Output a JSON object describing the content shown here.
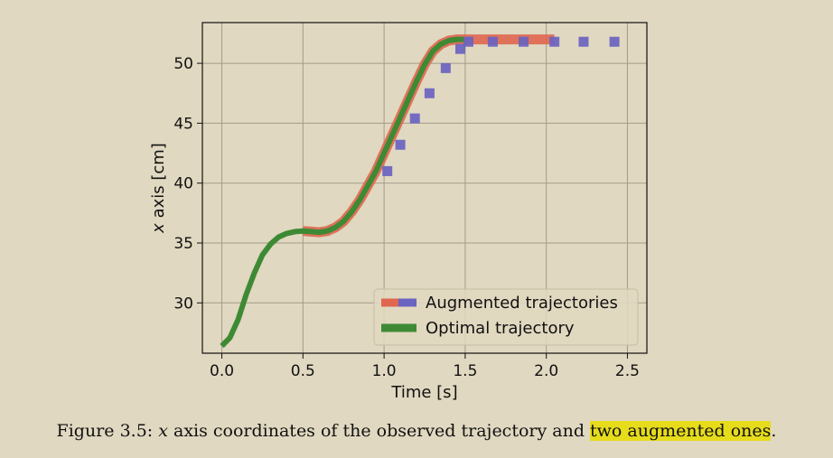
{
  "colors": {
    "background": "#e0d8c0",
    "optimal": "#3e8a34",
    "augmented_red": "#e0664f",
    "augmented_blue": "#6a63c0",
    "highlight": "#e6dc1c"
  },
  "chart_data": {
    "type": "line",
    "xlabel": "Time [s]",
    "ylabel_var": "x",
    "ylabel_rest": " axis [cm]",
    "xlim": [
      -0.12,
      2.62
    ],
    "ylim": [
      25.8,
      53.4
    ],
    "xticks": [
      0.0,
      0.5,
      1.0,
      1.5,
      2.0,
      2.5
    ],
    "xtick_labels": [
      "0.0",
      "0.5",
      "1.0",
      "1.5",
      "2.0",
      "2.5"
    ],
    "yticks": [
      30,
      35,
      40,
      45,
      50
    ],
    "ytick_labels": [
      "30",
      "35",
      "40",
      "45",
      "50"
    ],
    "grid": true,
    "legend_position": "lower right",
    "series": [
      {
        "name": "Optimal trajectory",
        "style": "solid",
        "x": [
          0.0,
          0.05,
          0.1,
          0.15,
          0.2,
          0.25,
          0.3,
          0.35,
          0.4,
          0.45,
          0.5,
          0.55,
          0.6,
          0.65,
          0.7,
          0.75,
          0.8,
          0.85,
          0.9,
          0.95,
          1.0,
          1.05,
          1.1,
          1.15,
          1.2,
          1.25,
          1.3,
          1.35,
          1.4,
          1.45,
          1.5
        ],
        "y": [
          26.4,
          27.1,
          28.6,
          30.7,
          32.5,
          34.0,
          34.9,
          35.5,
          35.8,
          35.95,
          36.0,
          35.95,
          35.9,
          36.0,
          36.3,
          36.8,
          37.6,
          38.6,
          39.8,
          41.0,
          42.5,
          44.0,
          45.5,
          47.0,
          48.5,
          49.9,
          51.0,
          51.6,
          51.9,
          52.0,
          52.0
        ]
      },
      {
        "name": "Augmented trajectories",
        "style": "solid",
        "x": [
          0.5,
          0.55,
          0.6,
          0.65,
          0.7,
          0.75,
          0.8,
          0.85,
          0.9,
          0.95,
          1.0,
          1.05,
          1.1,
          1.15,
          1.2,
          1.25,
          1.3,
          1.35,
          1.4,
          1.45,
          1.5,
          1.6,
          1.7,
          1.8,
          1.9,
          2.0,
          2.05
        ],
        "y": [
          36.0,
          35.95,
          35.9,
          36.0,
          36.3,
          36.8,
          37.6,
          38.6,
          39.8,
          41.0,
          42.5,
          44.0,
          45.5,
          47.0,
          48.5,
          49.9,
          51.0,
          51.6,
          51.9,
          52.0,
          52.0,
          52.0,
          52.0,
          52.0,
          52.0,
          52.0,
          52.0
        ]
      },
      {
        "name": "Augmented trajectories",
        "style": "dashed",
        "x": [
          1.02,
          1.1,
          1.19,
          1.28,
          1.38,
          1.47,
          1.52,
          1.67,
          1.86,
          2.05,
          2.23,
          2.42
        ],
        "y": [
          41.0,
          43.2,
          45.4,
          47.5,
          49.6,
          51.2,
          51.8,
          51.8,
          51.8,
          51.8,
          51.8,
          51.8
        ]
      }
    ],
    "legend": [
      "Augmented trajectories",
      "Optimal trajectory"
    ]
  },
  "caption": {
    "prefix": "Figure 3.5: ",
    "math": "x",
    "middle": " axis coordinates of the observed trajectory and ",
    "highlighted": "two augmented ones",
    "suffix": "."
  }
}
